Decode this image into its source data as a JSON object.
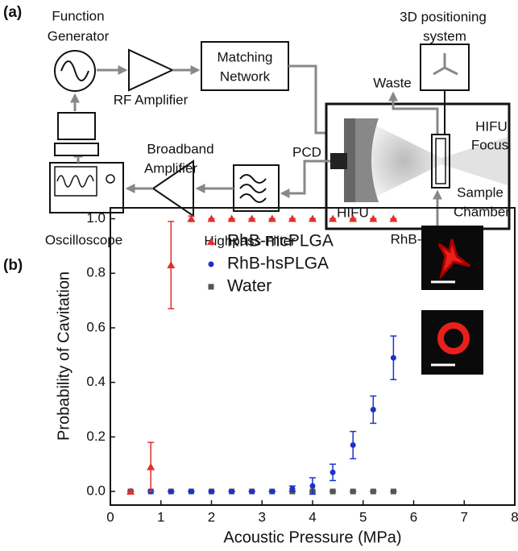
{
  "diagram": {
    "panel_label": "(a)",
    "function_generator": [
      "Function",
      "Generator"
    ],
    "rf_amplifier": "RF Amplifier",
    "matching_network": [
      "Matching",
      "Network"
    ],
    "positioning_system": [
      "3D positioning",
      "system"
    ],
    "waste": "Waste",
    "hifu_focus": [
      "HIFU",
      "Focus"
    ],
    "broadband_amplifier": [
      "Broadband",
      "Amplifier"
    ],
    "pcd": "PCD",
    "hifu": "HIFU",
    "sample_chamber": [
      "Sample",
      "Chamber"
    ],
    "oscilloscope": "Oscilloscope",
    "highpass_filter": "Highpass Filter",
    "input": "RhB-mcPLGA"
  },
  "chart_data": {
    "type": "scatter",
    "panel_label": "(b)",
    "x_label": "Acoustic Pressure (MPa)",
    "y_label": "Probability of Cavitation",
    "x": [
      0.4,
      0.8,
      1.2,
      1.6,
      2.0,
      2.4,
      2.8,
      3.2,
      3.6,
      4.0,
      4.4,
      4.8,
      5.2,
      5.6
    ],
    "series": [
      {
        "name": "RhB-mcPLGA",
        "color": "#e0302c",
        "marker": "triangle",
        "values": [
          0,
          0.09,
          0.83,
          1.0,
          1.0,
          1.0,
          1.0,
          1.0,
          1.0,
          1.0,
          1.0,
          1.0,
          1.0,
          1.0
        ],
        "errors": [
          0,
          0.09,
          0.16,
          0.01,
          0,
          0,
          0,
          0,
          0,
          0,
          0,
          0,
          0,
          0
        ]
      },
      {
        "name": "RhB-hsPLGA",
        "color": "#1c33c8",
        "marker": "circle",
        "values": [
          0,
          0,
          0,
          0,
          0,
          0,
          0,
          0,
          0.01,
          0.02,
          0.07,
          0.17,
          0.3,
          0.49
        ],
        "errors": [
          0,
          0,
          0,
          0,
          0,
          0,
          0,
          0,
          0.01,
          0.03,
          0.03,
          0.05,
          0.05,
          0.08
        ]
      },
      {
        "name": "Water",
        "color": "#555555",
        "marker": "square",
        "values": [
          0,
          0,
          0,
          0,
          0,
          0,
          0,
          0,
          0,
          0,
          0,
          0,
          0,
          0
        ],
        "errors": [
          0,
          0,
          0,
          0,
          0,
          0,
          0,
          0,
          0,
          0,
          0,
          0,
          0,
          0
        ]
      }
    ],
    "xlim": [
      0,
      8
    ],
    "ylim": [
      -0.05,
      1.04
    ],
    "xticks": [
      0,
      1,
      2,
      3,
      4,
      5,
      6,
      7,
      8
    ],
    "yticks": [
      {
        "value": 0,
        "label": "0.0"
      },
      {
        "value": 0.2,
        "label": "0.2"
      },
      {
        "value": 0.4,
        "label": "0.4"
      },
      {
        "value": 0.6,
        "label": "0.6"
      },
      {
        "value": 0.8,
        "label": "0.8"
      },
      {
        "value": 1.0,
        "label": "1.0"
      }
    ],
    "legend": "upper left"
  }
}
